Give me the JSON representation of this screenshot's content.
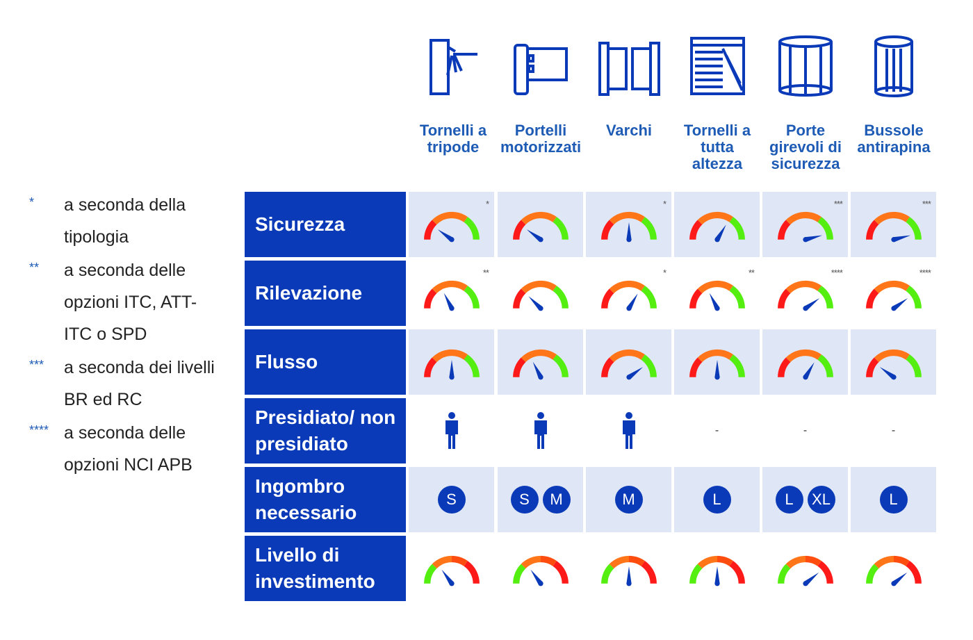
{
  "legend": [
    {
      "stars": "*",
      "text": "a seconda della tipologia"
    },
    {
      "stars": "**",
      "text": "a seconda delle opzioni ITC, ATT-ITC o SPD"
    },
    {
      "stars": "***",
      "text": "a seconda dei livelli BR ed RC"
    },
    {
      "stars": "****",
      "text": "a seconda delle opzioni NCI APB"
    }
  ],
  "columns": [
    {
      "label": "Tornelli a tripode",
      "icon": "tripod-turnstile-icon"
    },
    {
      "label": "Portelli motorizzati",
      "icon": "motorized-gate-icon"
    },
    {
      "label": "Varchi",
      "icon": "speed-gate-icon"
    },
    {
      "label": "Tornelli a tutta altezza",
      "icon": "full-height-turnstile-icon"
    },
    {
      "label": "Porte girevoli di sicurezza",
      "icon": "revolving-door-icon"
    },
    {
      "label": "Bussole antirapina",
      "icon": "security-cylinder-icon"
    }
  ],
  "colors": {
    "primary": "#0a3ab8",
    "header_text": "#1d5bb5",
    "cell_bg": "#dfe6f5",
    "red": "#ff1a1a",
    "orange": "#ff7518",
    "green": "#55ee11"
  },
  "rows": [
    {
      "label": "Sicurezza",
      "type": "gauge",
      "scale": "red-orange-green",
      "values": [
        20,
        20,
        50,
        67,
        92,
        92
      ],
      "notes": [
        "*",
        "",
        "*",
        "",
        "***",
        "***"
      ]
    },
    {
      "label": "Rilevazione",
      "type": "gauge",
      "scale": "red-orange-green",
      "values": [
        35,
        25,
        67,
        35,
        80,
        80
      ],
      "notes": [
        "**",
        "",
        "*",
        "**",
        "****",
        "****"
      ]
    },
    {
      "label": "Flusso",
      "type": "gauge",
      "scale": "red-orange-green",
      "values": [
        50,
        35,
        80,
        50,
        67,
        20
      ],
      "notes": [
        "",
        "",
        "",
        "",
        "",
        ""
      ]
    },
    {
      "label": "Presidiato/ non presidiato",
      "type": "person",
      "cells": [
        "person",
        "person",
        "person",
        "-",
        "-",
        "-"
      ]
    },
    {
      "label": "Ingombro necessario",
      "type": "size",
      "cells": [
        [
          "S"
        ],
        [
          "S",
          "M"
        ],
        [
          "M"
        ],
        [
          "L"
        ],
        [
          "L",
          "XL"
        ],
        [
          "L"
        ]
      ]
    },
    {
      "label": "Livello di investimento",
      "type": "gauge",
      "scale": "green-orange-red",
      "values": [
        30,
        30,
        50,
        50,
        78,
        78
      ],
      "notes": [
        "",
        "",
        "",
        "",
        "",
        ""
      ]
    }
  ]
}
